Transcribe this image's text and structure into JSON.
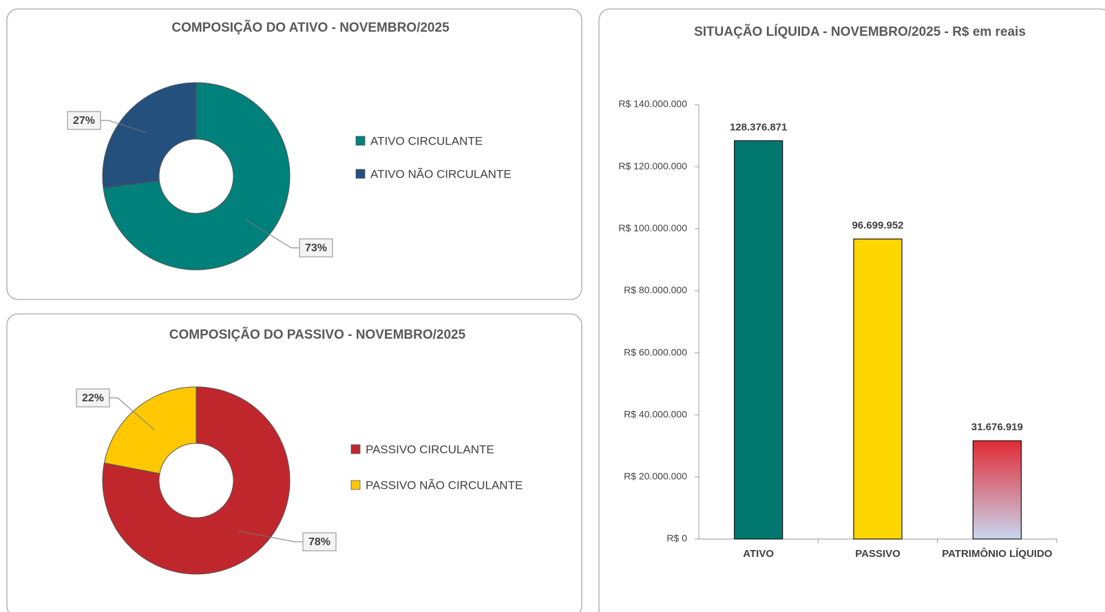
{
  "chart_data": [
    {
      "type": "donut",
      "title": "COMPOSIÇÃO DO ATIVO - NOVEMBRO/2025",
      "categories": [
        "ATIVO CIRCULANTE",
        "ATIVO NÃO CIRCULANTE"
      ],
      "values": [
        73,
        27
      ],
      "value_labels": [
        "73%",
        "27%"
      ],
      "colors": [
        "#00807a",
        "#24507e"
      ],
      "legend": "right"
    },
    {
      "type": "donut",
      "title": "COMPOSIÇÃO DO PASSIVO - NOVEMBRO/2025",
      "categories": [
        "PASSIVO CIRCULANTE",
        "PASSIVO NÃO CIRCULANTE"
      ],
      "values": [
        78,
        22
      ],
      "value_labels": [
        "78%",
        "22%"
      ],
      "colors": [
        "#c0272d",
        "#ffc800"
      ],
      "legend": "right"
    },
    {
      "type": "bar",
      "title": "SITUAÇÃO LÍQUIDA - NOVEMBRO/2025 - R$ em reais",
      "categories": [
        "ATIVO",
        "PASSIVO",
        "PATRIMÔNIO LÍQUIDO"
      ],
      "values": [
        128376871,
        96699952,
        31676919
      ],
      "value_labels": [
        "128.376.871",
        "96.699.952",
        "31.676.919"
      ],
      "colors": [
        "#00776f",
        "#ffd700",
        [
          "#e02a35",
          "#c9d6ee"
        ]
      ],
      "ylim": [
        0,
        140000000
      ],
      "yticks": [
        {
          "value": 0,
          "label": "R$ 0"
        },
        {
          "value": 20000000,
          "label": "R$ 20.000.000"
        },
        {
          "value": 40000000,
          "label": "R$ 40.000.000"
        },
        {
          "value": 60000000,
          "label": "R$ 60.000.000"
        },
        {
          "value": 80000000,
          "label": "R$ 80.000.000"
        },
        {
          "value": 100000000,
          "label": "R$ 100.000.000"
        },
        {
          "value": 120000000,
          "label": "R$ 120.000.000"
        },
        {
          "value": 140000000,
          "label": "R$ 140.000.000"
        }
      ],
      "grid": false
    }
  ]
}
